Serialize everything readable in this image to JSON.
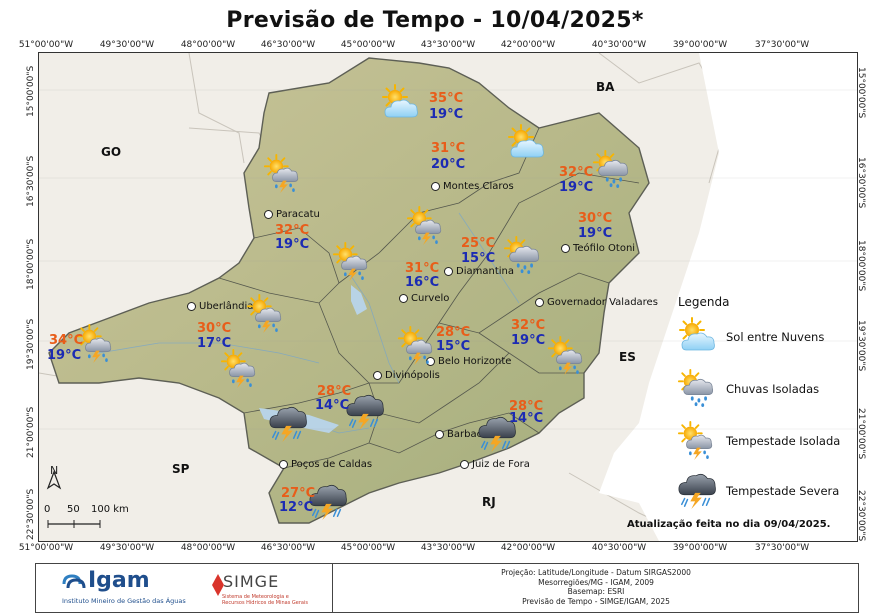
{
  "title": "Previsão de Tempo - 10/04/2025*",
  "coords": {
    "top": [
      "51°00'00\"W",
      "49°30'00\"W",
      "48°00'00\"W",
      "46°30'00\"W",
      "45°00'00\"W",
      "43°30'00\"W",
      "42°00'00\"W",
      "40°30'00\"W",
      "39°00'00\"W",
      "37°30'00\"W"
    ],
    "bottom": [
      "51°00'00\"W",
      "49°30'00\"W",
      "48°00'00\"W",
      "46°30'00\"W",
      "45°00'00\"W",
      "43°30'00\"W",
      "42°00'00\"W",
      "40°30'00\"W",
      "39°00'00\"W",
      "37°30'00\"W"
    ],
    "left": [
      "15°00'00\"S",
      "16°30'00\"S",
      "18°00'00\"S",
      "19°30'00\"S",
      "21°00'00\"S",
      "22°30'00\"S"
    ],
    "right": [
      "15°00'00\"S",
      "16°30'00\"S",
      "18°00'00\"S",
      "19°30'00\"S",
      "21°00'00\"S",
      "22°30'00\"S"
    ]
  },
  "states": {
    "go": "GO",
    "ba": "BA",
    "sp": "SP",
    "es": "ES",
    "rj": "RJ"
  },
  "cities": [
    "Montes Claros",
    "Paracatu",
    "Teófilo Otoni",
    "Diamantina",
    "Uberlândia",
    "Curvelo",
    "Governador Valadares",
    "Belo Horizonte",
    "Divinópolis",
    "Barbacena",
    "Poços de Caldas",
    "Juiz de Fora"
  ],
  "forecasts": [
    {
      "max": "35°C",
      "min": "19°C",
      "icon": "sun-behind-clouds-icon"
    },
    {
      "max": "31°C",
      "min": "20°C",
      "icon": "sun-behind-clouds-icon"
    },
    {
      "max": "32°C",
      "min": "19°C",
      "icon": "isolated-showers-icon"
    },
    {
      "max": "32°C",
      "min": "19°C",
      "icon": "isolated-storm-icon"
    },
    {
      "max": "30°C",
      "min": "19°C",
      "icon": "isolated-storm-icon"
    },
    {
      "max": "25°C",
      "min": "15°C",
      "icon": "isolated-showers-icon"
    },
    {
      "max": "31°C",
      "min": "16°C",
      "icon": "isolated-storm-icon"
    },
    {
      "max": "30°C",
      "min": "17°C",
      "icon": "isolated-storm-icon"
    },
    {
      "max": "34°C",
      "min": "19°C",
      "icon": "isolated-storm-icon"
    },
    {
      "max": "28°C",
      "min": "15°C",
      "icon": "isolated-storm-icon"
    },
    {
      "max": "32°C",
      "min": "19°C",
      "icon": "isolated-storm-icon"
    },
    {
      "max": "28°C",
      "min": "14°C",
      "icon": "severe-storm-icon"
    },
    {
      "max": "28°C",
      "min": "14°C",
      "icon": "severe-storm-icon"
    },
    {
      "max": "27°C",
      "min": "12°C",
      "icon": "severe-storm-icon"
    }
  ],
  "legend": {
    "title": "Legenda",
    "items": [
      {
        "label": "Sol entre Nuvens",
        "icon": "sun-behind-clouds-icon"
      },
      {
        "label": "Chuvas Isoladas",
        "icon": "isolated-showers-icon"
      },
      {
        "label": "Tempestade Isolada",
        "icon": "isolated-storm-icon"
      },
      {
        "label": "Tempestade Severa",
        "icon": "severe-storm-icon"
      }
    ]
  },
  "scale": {
    "north": "N",
    "ticks": [
      "0",
      "50",
      "100 km"
    ]
  },
  "updated": "Atualização feita no dia 09/04/2025.",
  "footer": {
    "igam_name": "Igam",
    "igam_sub": "Instituto Mineiro de Gestão das Águas",
    "simge_name": "SIMGE",
    "simge_sub": "Sistema de Meteorologia e Recursos Hídricos de Minas Gerais",
    "info": [
      "Projeção: Latitude/Longitude - Datum SIRGAS2000",
      "Mesorregiões/MG - IGAM, 2009",
      "Basemap: ESRI",
      "Previsão de Tempo - SIMGE/IGAM, 2025"
    ]
  },
  "colors": {
    "max_temp": "#e85d1a",
    "min_temp": "#1c2bb3",
    "sun": "#f7b500",
    "cloud_light": "#bfe3f7",
    "cloud_dark": "#5a6470",
    "bolt": "#f5a623",
    "rain": "#3a8fd6"
  }
}
